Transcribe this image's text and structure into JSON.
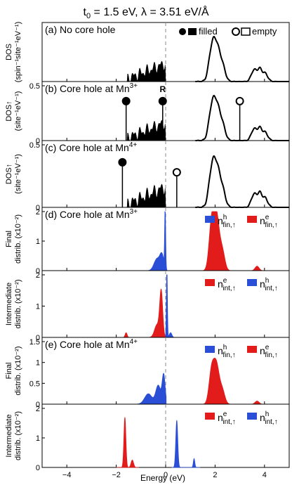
{
  "figure": {
    "title": "t",
    "title_sub": "0",
    "title_rest": " = 1.5 eV,   λ = 3.51 eV/Å",
    "xlabel": "Energy (eV)",
    "legend_filled": "filled",
    "legend_empty": "empty"
  },
  "chart_data": [
    {
      "type": "area",
      "panel": "a",
      "label": "(a) No core hole",
      "ylabel1": "DOS",
      "ylabel2": "(spin⁻¹site⁻¹eV⁻¹)",
      "xlim": [
        -5,
        5
      ],
      "series": [
        {
          "name": "filled",
          "x": [
            -1.5,
            -1.3,
            -1.1,
            -0.9,
            -0.7,
            -0.5,
            -0.3,
            -0.1,
            0.0
          ],
          "y": [
            0.0,
            0.05,
            0.12,
            0.2,
            0.28,
            0.3,
            0.34,
            0.38,
            0.0
          ]
        },
        {
          "name": "empty",
          "x": [
            1.3,
            1.5,
            1.7,
            1.8,
            1.9,
            2.0,
            2.1,
            2.2,
            2.3,
            2.5,
            2.7,
            3.2,
            3.4,
            3.6,
            3.7,
            3.8,
            3.9,
            4.0,
            4.2,
            4.5
          ],
          "y": [
            0.0,
            0.1,
            0.5,
            0.8,
            0.85,
            0.88,
            0.82,
            0.7,
            0.5,
            0.15,
            0.02,
            0.0,
            0.15,
            0.35,
            0.4,
            0.45,
            0.4,
            0.38,
            0.1,
            0.0
          ]
        }
      ]
    },
    {
      "type": "area",
      "panel": "b",
      "label": "(b) Core hole at Mn",
      "label_sup": "3+",
      "ylabel1": "DOS↑",
      "ylabel2": "(site⁻¹eV⁻¹)",
      "xlim": [
        -5,
        5
      ],
      "ylim": [
        0,
        0.5
      ],
      "yticks": [
        "0",
        "0.5"
      ],
      "annotation": "R",
      "stems": [
        {
          "x": -1.6,
          "kind": "filled",
          "height": 0.45
        },
        {
          "x": -0.12,
          "kind": "filled",
          "height": 0.45
        },
        {
          "x": 3.0,
          "kind": "empty",
          "height": 0.45
        }
      ]
    },
    {
      "type": "area",
      "panel": "c",
      "label": "(c) Core hole at Mn",
      "label_sup": "4+",
      "ylabel1": "DOS↑",
      "ylabel2": "(site⁻¹eV⁻¹)",
      "xlim": [
        -5,
        5
      ],
      "ylim": [
        0,
        0.5
      ],
      "yticks": [
        "0",
        "0.5"
      ],
      "stems": [
        {
          "x": -1.75,
          "kind": "filled",
          "height": 0.45
        },
        {
          "x": 0.45,
          "kind": "empty",
          "height": 0.35
        }
      ]
    },
    {
      "type": "area",
      "panel": "d-final",
      "label": "(d) Core hole at Mn",
      "label_sup": "3+",
      "ylabel1": "Final",
      "ylabel2": "distrib. (x10⁻²)",
      "xlim": [
        -5,
        5
      ],
      "ylim": [
        0,
        2
      ],
      "yticks": [
        "0",
        "1",
        "2"
      ],
      "legend": [
        {
          "base": "n",
          "sup": "h",
          "sub": "fin,↑",
          "color": "#2a4fd6"
        },
        {
          "base": "n",
          "sup": "e",
          "sub": "fin,↑",
          "color": "#e21b1b"
        }
      ]
    },
    {
      "type": "area",
      "panel": "d-intermediate",
      "ylabel1": "Intermediate",
      "ylabel2": "distrib. (x10⁻²)",
      "xlim": [
        -5,
        5
      ],
      "ylim": [
        0,
        2
      ],
      "yticks": [
        "0",
        "1",
        "2"
      ],
      "legend": [
        {
          "base": "n",
          "sup": "e",
          "sub": "int,↑",
          "color": "#e21b1b"
        },
        {
          "base": "n",
          "sup": "h",
          "sub": "int,↑",
          "color": "#2a4fd6"
        }
      ]
    },
    {
      "type": "area",
      "panel": "e-final",
      "label": "(e) Core hole at Mn",
      "label_sup": "4+",
      "ylabel1": "Final",
      "ylabel2": "distrib. (x10⁻²)",
      "xlim": [
        -5,
        5
      ],
      "ylim": [
        0,
        1.5
      ],
      "yticks": [
        "0",
        "0.5",
        "1",
        "1.5"
      ],
      "legend": [
        {
          "base": "n",
          "sup": "h",
          "sub": "fin,↑",
          "color": "#2a4fd6"
        },
        {
          "base": "n",
          "sup": "e",
          "sub": "fin,↑",
          "color": "#e21b1b"
        }
      ]
    },
    {
      "type": "area",
      "panel": "e-intermediate",
      "ylabel1": "Intermediate",
      "ylabel2": "distrib. (x10⁻²)",
      "xlim": [
        -5,
        5
      ],
      "ylim": [
        0,
        2
      ],
      "yticks": [
        "0",
        "1",
        "2"
      ],
      "xticks": [
        "−4",
        "−2",
        "0",
        "2",
        "4"
      ],
      "legend": [
        {
          "base": "n",
          "sup": "e",
          "sub": "int,↑",
          "color": "#e21b1b"
        },
        {
          "base": "n",
          "sup": "h",
          "sub": "int,↑",
          "color": "#2a4fd6"
        }
      ]
    }
  ]
}
